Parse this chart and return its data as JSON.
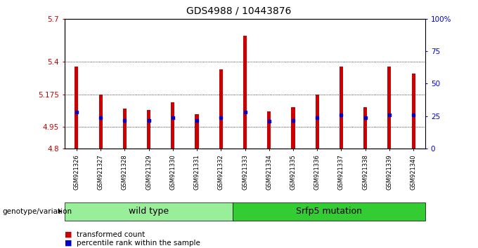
{
  "title": "GDS4988 / 10443876",
  "samples": [
    "GSM921326",
    "GSM921327",
    "GSM921328",
    "GSM921329",
    "GSM921330",
    "GSM921331",
    "GSM921332",
    "GSM921333",
    "GSM921334",
    "GSM921335",
    "GSM921336",
    "GSM921337",
    "GSM921338",
    "GSM921339",
    "GSM921340"
  ],
  "transformed_count": [
    5.37,
    5.175,
    5.08,
    5.07,
    5.12,
    5.04,
    5.35,
    5.58,
    5.06,
    5.09,
    5.175,
    5.37,
    5.09,
    5.37,
    5.32
  ],
  "percentile_rank": [
    28,
    24,
    22,
    22,
    24,
    22,
    24,
    28,
    21,
    22,
    24,
    26,
    24,
    26,
    26
  ],
  "ylim": [
    4.8,
    5.7
  ],
  "yticks_left": [
    4.8,
    4.95,
    5.175,
    5.4,
    5.7
  ],
  "yticks_right_vals": [
    0,
    25,
    50,
    75,
    100
  ],
  "yticks_right_labels": [
    "0",
    "25",
    "50",
    "75",
    "100%"
  ],
  "bar_color": "#cc0000",
  "percentile_color": "#0000cc",
  "bar_width": 0.15,
  "grid_color": "#000000",
  "groups": [
    {
      "label": "wild type",
      "start": 0,
      "end": 7,
      "color": "#99ee99"
    },
    {
      "label": "Srfp5 mutation",
      "start": 7,
      "end": 15,
      "color": "#33cc33"
    }
  ],
  "legend_items": [
    {
      "label": "transformed count",
      "color": "#cc0000"
    },
    {
      "label": "percentile rank within the sample",
      "color": "#0000cc"
    }
  ],
  "title_fontsize": 10,
  "tick_fontsize": 7.5,
  "label_fontsize": 9,
  "background_color": "#ffffff",
  "plot_bg": "#ffffff"
}
